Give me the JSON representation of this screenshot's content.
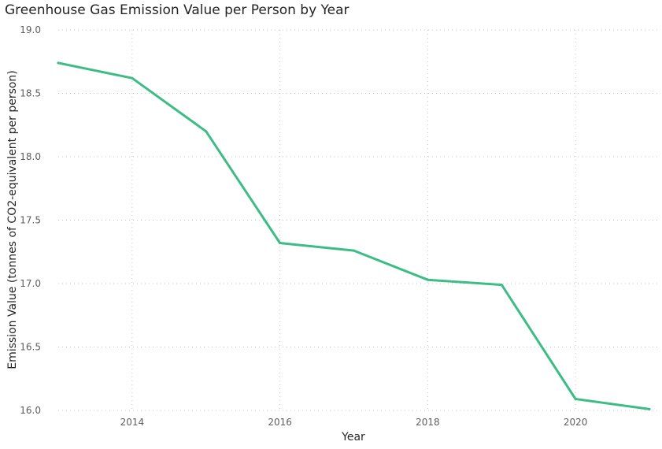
{
  "chart_data": {
    "type": "line",
    "title": "Greenhouse Gas Emission Value per Person by Year",
    "xlabel": "Year",
    "ylabel": "Emission Value (tonnes of CO2-equivalent per person)",
    "x": [
      2013,
      2014,
      2015,
      2016,
      2017,
      2018,
      2019,
      2020,
      2021
    ],
    "series": [
      {
        "values": [
          18.74,
          18.62,
          18.2,
          17.32,
          17.26,
          17.03,
          16.99,
          16.09,
          16.01
        ],
        "color": "#3dbd85"
      }
    ],
    "xlim": [
      2013,
      2021
    ],
    "ylim": [
      16.0,
      19.0
    ],
    "x_ticks": [
      "2014",
      "2016",
      "2018",
      "2020"
    ],
    "y_ticks": [
      "19.0",
      "18.5",
      "18.0",
      "17.5",
      "17.0",
      "16.5",
      "16.0"
    ],
    "grid": true,
    "legend": false
  }
}
